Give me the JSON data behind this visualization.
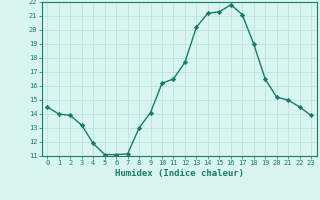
{
  "x": [
    0,
    1,
    2,
    3,
    4,
    5,
    6,
    7,
    8,
    9,
    10,
    11,
    12,
    13,
    14,
    15,
    16,
    17,
    18,
    19,
    20,
    21,
    22,
    23
  ],
  "y": [
    14.5,
    14.0,
    13.9,
    13.2,
    11.9,
    11.1,
    11.1,
    11.15,
    13.0,
    14.1,
    16.2,
    16.5,
    17.7,
    20.2,
    21.2,
    21.3,
    21.8,
    21.1,
    19.0,
    16.5,
    15.2,
    15.0,
    14.5,
    13.9
  ],
  "line_color": "#1a7a6e",
  "marker": "D",
  "marker_size": 2.2,
  "bg_color": "#d8f5f0",
  "grid_color": "#b8deda",
  "xlabel": "Humidex (Indice chaleur)",
  "ylim": [
    11,
    22
  ],
  "xlim_min": -0.5,
  "xlim_max": 23.5,
  "yticks": [
    11,
    12,
    13,
    14,
    15,
    16,
    17,
    18,
    19,
    20,
    21,
    22
  ],
  "xticks": [
    0,
    1,
    2,
    3,
    4,
    5,
    6,
    7,
    8,
    9,
    10,
    11,
    12,
    13,
    14,
    15,
    16,
    17,
    18,
    19,
    20,
    21,
    22,
    23
  ],
  "xtick_labels": [
    "0",
    "1",
    "2",
    "3",
    "4",
    "5",
    "6",
    "7",
    "8",
    "9",
    "10",
    "11",
    "12",
    "13",
    "14",
    "15",
    "16",
    "17",
    "18",
    "19",
    "20",
    "21",
    "22",
    "23"
  ],
  "axis_color": "#1a7a6e",
  "tick_color": "#1a7a6e",
  "xlabel_fontsize": 6.5,
  "tick_fontsize": 5.0,
  "linewidth": 1.0
}
